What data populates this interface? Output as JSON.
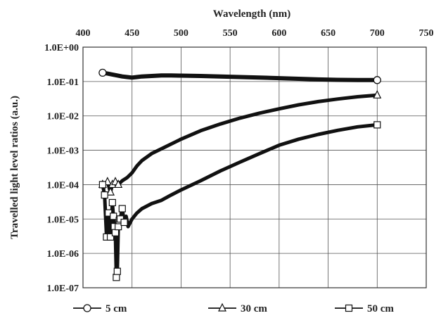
{
  "chart_data": {
    "type": "scatter",
    "title": "",
    "xlabel": "Wavelength (nm)",
    "ylabel": "Travelled light level ratios (a.u.)",
    "x_axis_position": "top",
    "xlim": [
      400,
      750
    ],
    "x_ticks": [
      "400",
      "450",
      "500",
      "550",
      "600",
      "650",
      "700",
      "750"
    ],
    "yscale": "log",
    "ylim": [
      1e-07,
      1
    ],
    "y_ticks": [
      "1.0E-07",
      "1.0E-06",
      "1.0E-05",
      "1.0E-04",
      "1.0E-03",
      "1.0E-02",
      "1.0E-01",
      "1.0E+00"
    ],
    "grid": true,
    "legend_position": "bottom",
    "series": [
      {
        "name": "5 cm",
        "marker": "circle",
        "x": [
          420,
          425,
          430,
          435,
          440,
          445,
          450,
          455,
          460,
          470,
          480,
          490,
          500,
          520,
          540,
          560,
          580,
          600,
          620,
          640,
          660,
          680,
          700
        ],
        "y": [
          0.18,
          0.17,
          0.16,
          0.15,
          0.14,
          0.135,
          0.13,
          0.135,
          0.14,
          0.145,
          0.15,
          0.15,
          0.148,
          0.145,
          0.14,
          0.135,
          0.13,
          0.125,
          0.12,
          0.115,
          0.112,
          0.11,
          0.11
        ]
      },
      {
        "name": "30 cm",
        "marker": "triangle",
        "x": [
          420,
          425,
          428,
          430,
          433,
          436,
          440,
          445,
          450,
          455,
          460,
          470,
          480,
          500,
          520,
          540,
          560,
          580,
          600,
          620,
          640,
          660,
          680,
          700
        ],
        "y": [
          0.0001,
          0.00012,
          6e-05,
          0.0001,
          0.00012,
          0.0001,
          0.00013,
          0.00016,
          0.00022,
          0.00035,
          0.0005,
          0.0008,
          0.0011,
          0.0021,
          0.0037,
          0.0058,
          0.0086,
          0.012,
          0.016,
          0.021,
          0.026,
          0.031,
          0.036,
          0.04
        ]
      },
      {
        "name": "50 cm",
        "marker": "square",
        "x": [
          420,
          422,
          424,
          426,
          428,
          430,
          431,
          432,
          433,
          434,
          435,
          436,
          437,
          438,
          440,
          442,
          444,
          446,
          450,
          455,
          460,
          470,
          480,
          490,
          500,
          520,
          540,
          560,
          580,
          600,
          620,
          640,
          660,
          680,
          700
        ],
        "y": [
          0.0001,
          5e-05,
          3e-06,
          1.5e-05,
          3e-06,
          3e-05,
          1.2e-05,
          6e-06,
          4e-06,
          2e-07,
          3e-07,
          6e-06,
          9e-06,
          1e-05,
          2e-05,
          8e-06,
          1.2e-05,
          6e-06,
          1e-05,
          1.5e-05,
          2e-05,
          2.8e-05,
          3.5e-05,
          5e-05,
          7e-05,
          0.00013,
          0.00025,
          0.00045,
          0.0008,
          0.0014,
          0.0021,
          0.0029,
          0.0038,
          0.0048,
          0.0055
        ]
      }
    ]
  }
}
